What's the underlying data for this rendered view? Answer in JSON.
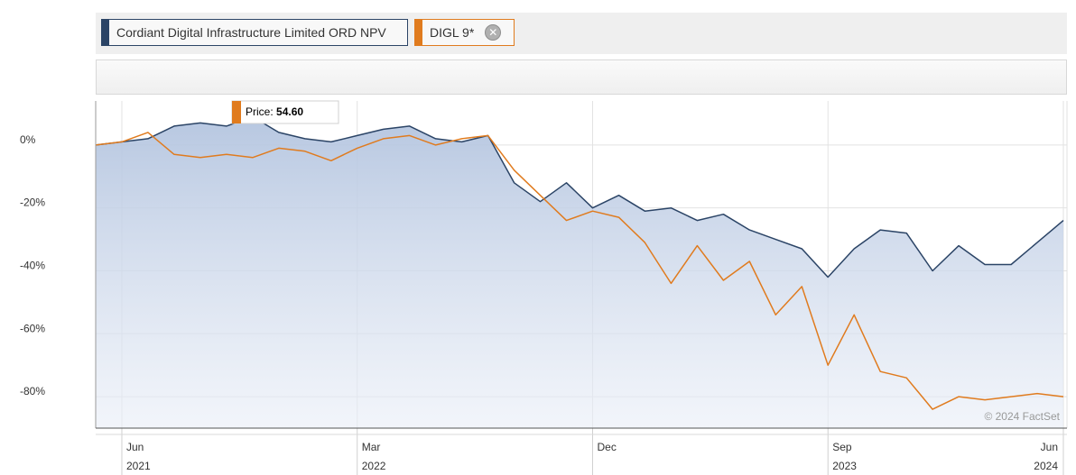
{
  "legend": {
    "primary": {
      "label": "Cordiant Digital Infrastructure Limited ORD NPV",
      "color": "#2b4466"
    },
    "secondary": {
      "label": "DIGL 9*",
      "color": "#e07b1e",
      "close_icon": "close-icon"
    }
  },
  "tooltip": {
    "label": "Price:",
    "value": "54.60"
  },
  "credit": "© 2024 FactSet",
  "chart_data": {
    "type": "line",
    "title": "",
    "xlabel": "",
    "ylabel": "",
    "y_ticks": [
      {
        "value": 0,
        "label": "0%"
      },
      {
        "value": -20,
        "label": "-20%"
      },
      {
        "value": -40,
        "label": "-40%"
      },
      {
        "value": -60,
        "label": "-60%"
      },
      {
        "value": -80,
        "label": "-80%"
      }
    ],
    "ylim": [
      -90,
      14
    ],
    "x_ticks": [
      {
        "date": "2021-06",
        "month": "Jun",
        "year": "2021"
      },
      {
        "date": "2022-03",
        "month": "Mar",
        "year": "2022"
      },
      {
        "date": "2022-12",
        "month": "Dec",
        "year": ""
      },
      {
        "date": "2023-09",
        "month": "Sep",
        "year": "2023"
      },
      {
        "date": "2024-06",
        "month": "Jun",
        "year": "2024"
      }
    ],
    "xlim": [
      "2021-05",
      "2024-06"
    ],
    "grid": true,
    "series": [
      {
        "name": "Cordiant Digital Infrastructure Limited ORD NPV",
        "color": "#2b4466",
        "fill": true,
        "points": [
          [
            "2021-05",
            0
          ],
          [
            "2021-06",
            1
          ],
          [
            "2021-07",
            2
          ],
          [
            "2021-08",
            6
          ],
          [
            "2021-09",
            7
          ],
          [
            "2021-10",
            6
          ],
          [
            "2021-11",
            9
          ],
          [
            "2021-12",
            4
          ],
          [
            "2022-01",
            2
          ],
          [
            "2022-02",
            1
          ],
          [
            "2022-03",
            3
          ],
          [
            "2022-04",
            5
          ],
          [
            "2022-05",
            6
          ],
          [
            "2022-06",
            2
          ],
          [
            "2022-07",
            1
          ],
          [
            "2022-08",
            3
          ],
          [
            "2022-09",
            -12
          ],
          [
            "2022-10",
            -18
          ],
          [
            "2022-11",
            -12
          ],
          [
            "2022-12",
            -20
          ],
          [
            "2023-01",
            -16
          ],
          [
            "2023-02",
            -21
          ],
          [
            "2023-03",
            -20
          ],
          [
            "2023-04",
            -24
          ],
          [
            "2023-05",
            -22
          ],
          [
            "2023-06",
            -27
          ],
          [
            "2023-07",
            -30
          ],
          [
            "2023-08",
            -33
          ],
          [
            "2023-09",
            -42
          ],
          [
            "2023-10",
            -33
          ],
          [
            "2023-11",
            -27
          ],
          [
            "2023-12",
            -28
          ],
          [
            "2024-01",
            -40
          ],
          [
            "2024-02",
            -32
          ],
          [
            "2024-03",
            -38
          ],
          [
            "2024-04",
            -38
          ],
          [
            "2024-05",
            -31
          ],
          [
            "2024-06",
            -24
          ]
        ]
      },
      {
        "name": "DIGL 9*",
        "color": "#e07b1e",
        "fill": false,
        "points": [
          [
            "2021-05",
            0
          ],
          [
            "2021-06",
            1
          ],
          [
            "2021-07",
            4
          ],
          [
            "2021-08",
            -3
          ],
          [
            "2021-09",
            -4
          ],
          [
            "2021-10",
            -3
          ],
          [
            "2021-11",
            -4
          ],
          [
            "2021-12",
            -1
          ],
          [
            "2022-01",
            -2
          ],
          [
            "2022-02",
            -5
          ],
          [
            "2022-03",
            -1
          ],
          [
            "2022-04",
            2
          ],
          [
            "2022-05",
            3
          ],
          [
            "2022-06",
            0
          ],
          [
            "2022-07",
            2
          ],
          [
            "2022-08",
            3
          ],
          [
            "2022-09",
            -8
          ],
          [
            "2022-10",
            -16
          ],
          [
            "2022-11",
            -24
          ],
          [
            "2022-12",
            -21
          ],
          [
            "2023-01",
            -23
          ],
          [
            "2023-02",
            -31
          ],
          [
            "2023-03",
            -44
          ],
          [
            "2023-04",
            -32
          ],
          [
            "2023-05",
            -43
          ],
          [
            "2023-06",
            -37
          ],
          [
            "2023-07",
            -54
          ],
          [
            "2023-08",
            -45
          ],
          [
            "2023-09",
            -70
          ],
          [
            "2023-10",
            -54
          ],
          [
            "2023-11",
            -72
          ],
          [
            "2023-12",
            -74
          ],
          [
            "2024-01",
            -84
          ],
          [
            "2024-02",
            -80
          ],
          [
            "2024-03",
            -81
          ],
          [
            "2024-04",
            -80
          ],
          [
            "2024-05",
            -79
          ],
          [
            "2024-06",
            -80
          ]
        ]
      }
    ]
  }
}
